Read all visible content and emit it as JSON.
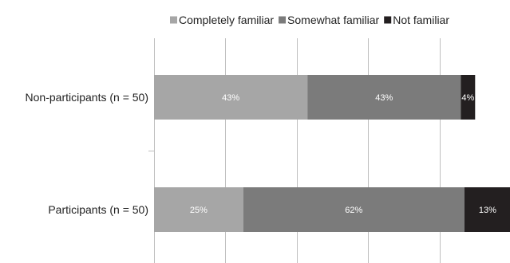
{
  "chart_data": {
    "type": "bar",
    "orientation": "horizontal",
    "stacked": true,
    "categories": [
      "Non-participants (n = 50)",
      "Participants (n = 50)"
    ],
    "series": [
      {
        "name": "Completely familiar",
        "color": "#a6a6a6",
        "label_color": "#ffffff",
        "values": [
          43,
          25
        ],
        "labels": [
          "43%",
          "25%"
        ]
      },
      {
        "name": "Somewhat familiar",
        "color": "#7b7b7b",
        "label_color": "#ffffff",
        "values": [
          43,
          62
        ],
        "labels": [
          "43%",
          "62%"
        ]
      },
      {
        "name": "Not familiar",
        "color": "#231f20",
        "label_color": "#ffffff",
        "values": [
          4,
          13
        ],
        "labels": [
          "4%",
          "13%"
        ]
      }
    ],
    "xlim": [
      0,
      100
    ],
    "gridlines": [
      0,
      20,
      40,
      60,
      80,
      100
    ],
    "grid": true,
    "legend_position": "top-right",
    "title": "",
    "xlabel": "",
    "ylabel": ""
  }
}
